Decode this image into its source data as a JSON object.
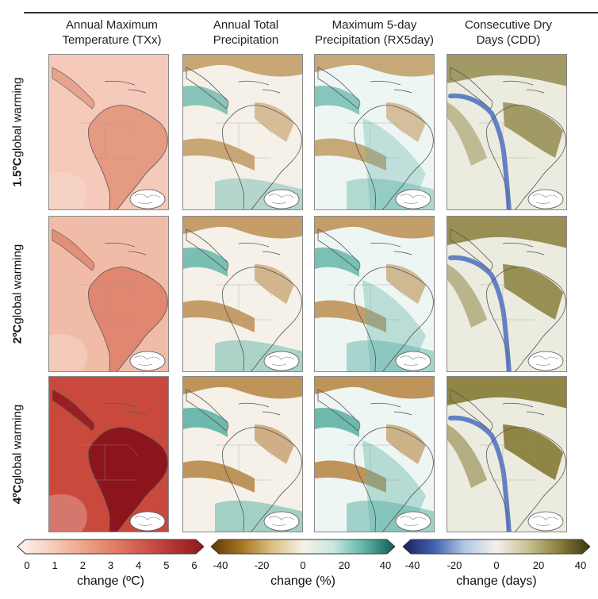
{
  "column_headers": [
    {
      "line1": "Annual Maximum",
      "line2": "Temperature (TXx)"
    },
    {
      "line1": "Annual Total",
      "line2": "Precipitation"
    },
    {
      "line1": "Maximum 5-day",
      "line2": "Precipitation (RX5day)"
    },
    {
      "line1": "Consecutive Dry",
      "line2": "Days (CDD)"
    }
  ],
  "row_labels": [
    {
      "bold": "1.5ºC",
      "rest": " global warming"
    },
    {
      "bold": "2ºC",
      "rest": " global warming"
    },
    {
      "bold": "4ºC",
      "rest": " global warming"
    }
  ],
  "colorbars": [
    {
      "ticks": [
        "0",
        "1",
        "2",
        "3",
        "4",
        "5",
        "6"
      ],
      "title": "change (ºC)",
      "colors": [
        "#fdf5f0",
        "#f7d2c2",
        "#efa990",
        "#e3826a",
        "#cf5a4d",
        "#b33434",
        "#8c1a1f"
      ]
    },
    {
      "ticks": [
        "-40",
        "-20",
        "0",
        "20",
        "40"
      ],
      "title": "change (%)",
      "colors": [
        "#5b3a0a",
        "#a8741f",
        "#dcc083",
        "#f6f1e6",
        "#c6e7e0",
        "#5fb3a6",
        "#0b5e55"
      ]
    },
    {
      "ticks": [
        "-40",
        "-20",
        "0",
        "20",
        "40"
      ],
      "title": "change (days)",
      "colors": [
        "#1d1f5c",
        "#3f62b0",
        "#b4c8e6",
        "#f3f1ea",
        "#c9c293",
        "#8a7f3c",
        "#3b3511"
      ]
    }
  ],
  "map_colors": {
    "txx": {
      "bg": [
        "#f5cabb",
        "#f0bca8",
        "#c94a3d"
      ],
      "land": [
        "#e59a82",
        "#e08671",
        "#8c151d"
      ]
    },
    "pr_brown": "#b9894a",
    "pr_teal": "#5fb3a6",
    "cdd_olive": "#8a7f3c",
    "cdd_blue": "#4a6fc0",
    "coast": "#555555"
  }
}
